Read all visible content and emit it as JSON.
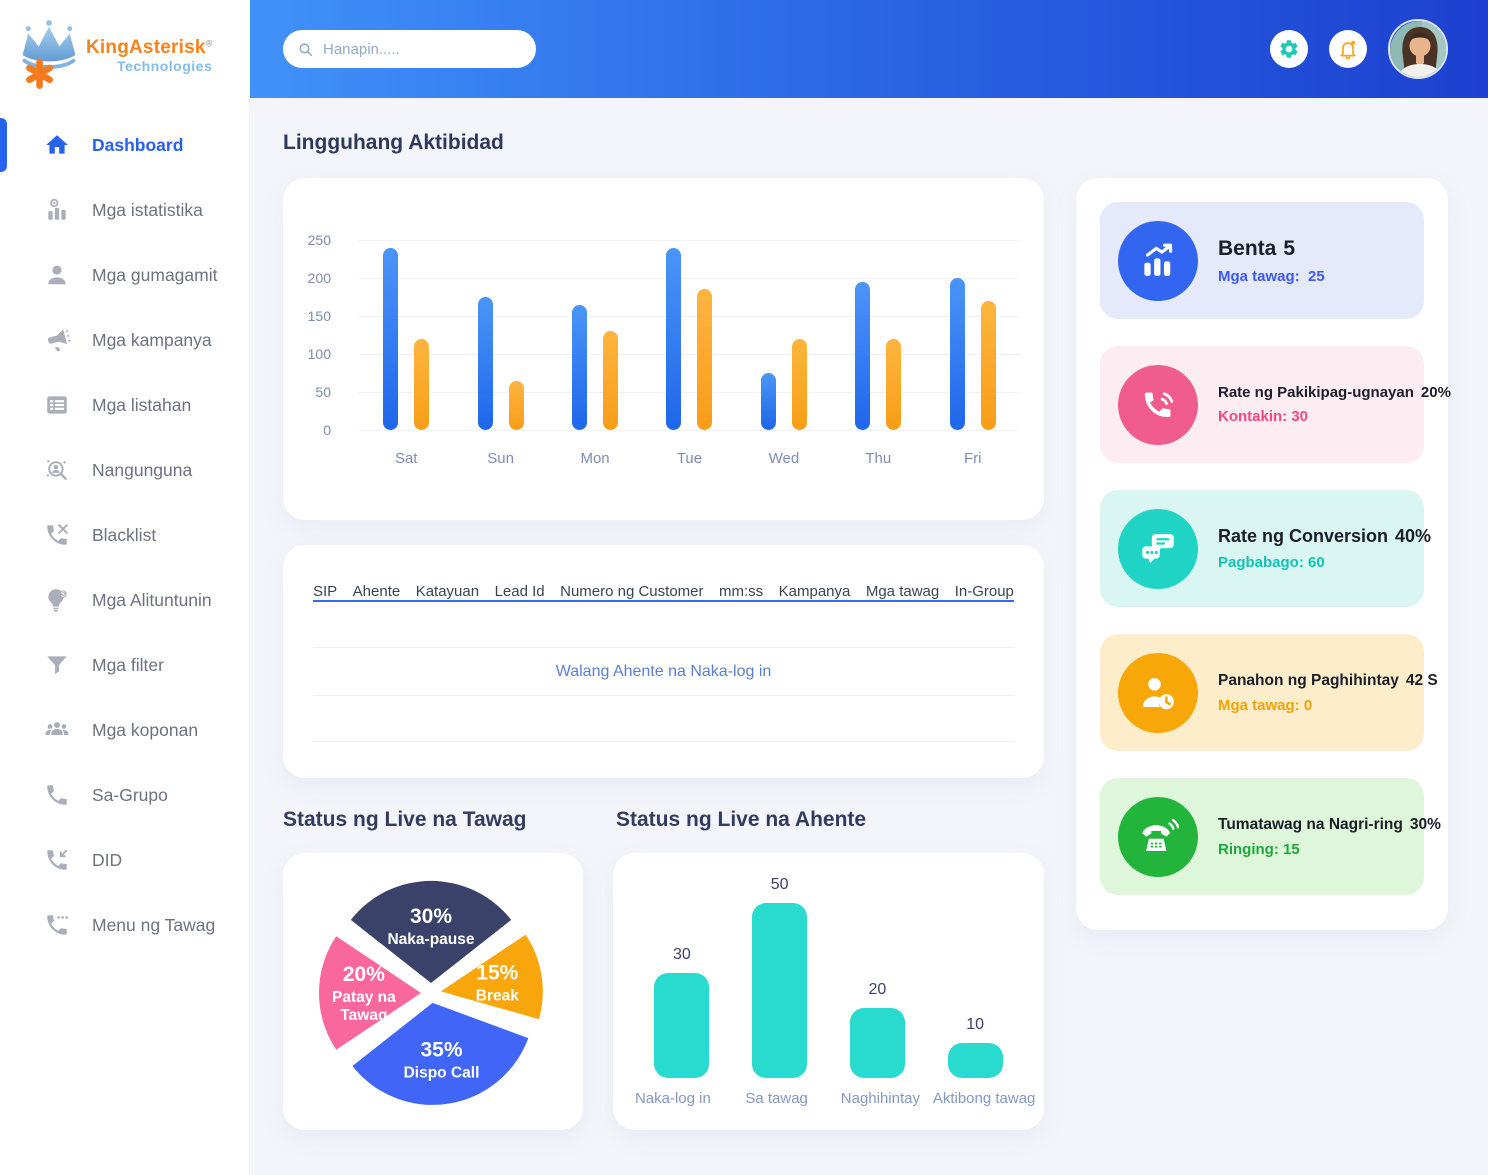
{
  "logo": {
    "name": "KingAsterisk",
    "reg": "®",
    "subtitle": "Technologies"
  },
  "header": {
    "search_placeholder": "Hanapin....."
  },
  "sidebar": {
    "items": [
      {
        "label": "Dashboard",
        "icon": "home-icon",
        "active": true
      },
      {
        "label": "Mga istatistika",
        "icon": "stats-icon"
      },
      {
        "label": "Mga gumagamit",
        "icon": "user-icon"
      },
      {
        "label": "Mga kampanya",
        "icon": "megaphone-icon"
      },
      {
        "label": "Mga listahan",
        "icon": "list-icon"
      },
      {
        "label": "Nangunguna",
        "icon": "leaderboard-icon"
      },
      {
        "label": "Blacklist",
        "icon": "phone-slash-icon"
      },
      {
        "label": "Mga Alituntunin",
        "icon": "bulb-icon"
      },
      {
        "label": "Mga filter",
        "icon": "filter-icon"
      },
      {
        "label": "Mga koponan",
        "icon": "team-icon"
      },
      {
        "label": "Sa-Grupo",
        "icon": "phone-icon"
      },
      {
        "label": "DID",
        "icon": "phone-incoming-icon"
      },
      {
        "label": "Menu ng Tawag",
        "icon": "phone-menu-icon"
      }
    ]
  },
  "main": {
    "weekly_title": "Lingguhang Aktibidad",
    "live_call_title": "Status ng Live na Tawag",
    "live_agent_title": "Status ng Live na Ahente",
    "table": {
      "headers": [
        "SIP",
        "Ahente",
        "Katayuan",
        "Lead Id",
        "Numero ng Customer",
        "mm:ss",
        "Kampanya",
        "Mga tawag",
        "In-Group"
      ],
      "empty_text": "Walang Ahente na Naka-log in"
    }
  },
  "stat_cards": [
    {
      "title": "Benta",
      "value": "5",
      "subtitle": "Mga tawag:  25",
      "icon": "sales-growth-icon",
      "accent": "#3366f0",
      "bg": "#e4e9fc"
    },
    {
      "title": "Rate ng Pakikipag-ugnayan",
      "value": "20%",
      "subtitle": "Kontakin: 30",
      "icon": "phone-volume-icon",
      "accent": "#f05c8e",
      "bg": "#fdedf2"
    },
    {
      "title": "Rate ng Conversion",
      "value": "40%",
      "subtitle": "Pagbabago: 60",
      "icon": "chat-bubbles-icon",
      "accent": "#1fd3c5",
      "bg": "#d9f6f3"
    },
    {
      "title": "Panahon ng Paghihintay",
      "value": "42 S",
      "subtitle": "Mga tawag: 0",
      "icon": "person-clock-icon",
      "accent": "#f7a707",
      "bg": "#fdedcb"
    },
    {
      "title": "Tumatawag na Nagri-ring",
      "value": "30%",
      "subtitle": "Ringing: 15",
      "icon": "telephone-ring-icon",
      "accent": "#23b53b",
      "bg": "#def7da"
    }
  ],
  "chart_data": [
    {
      "type": "bar",
      "title": "Lingguhang Aktibidad",
      "categories": [
        "Sat",
        "Sun",
        "Mon",
        "Tue",
        "Wed",
        "Thu",
        "Fri"
      ],
      "series": [
        {
          "name": "series-blue",
          "color": "#2e7ef3",
          "values": [
            240,
            175,
            165,
            240,
            75,
            195,
            200
          ]
        },
        {
          "name": "series-orange",
          "color": "#fba62c",
          "values": [
            120,
            65,
            130,
            185,
            120,
            120,
            170
          ]
        }
      ],
      "ylim": [
        0,
        250
      ],
      "yticks": [
        0,
        50,
        100,
        150,
        200,
        250
      ],
      "grid": true,
      "legend": "none"
    },
    {
      "type": "pie",
      "title": "Status ng Live na Tawag",
      "slices": [
        {
          "pct": 30,
          "label": "Naka-pause",
          "label_lines": [
            "Naka-pause"
          ],
          "color": "#3b4269"
        },
        {
          "pct": 15,
          "label": "Break",
          "label_lines": [
            "Break"
          ],
          "color": "#f8a60c"
        },
        {
          "pct": 35,
          "label": "Dispo Call",
          "label_lines": [
            "Dispo Call"
          ],
          "color": "#4165f6"
        },
        {
          "pct": 20,
          "label": "Patay na Tawag",
          "label_lines": [
            "Patay na",
            "Tawag"
          ],
          "color": "#f9679c"
        }
      ],
      "start_angle_deg": -54,
      "exploded": true,
      "legend": "none"
    },
    {
      "type": "bar",
      "title": "Status ng Live na Ahente",
      "categories": [
        "Naka-log in",
        "Sa tawag",
        "Naghihintay",
        "Aktibong tawag"
      ],
      "values": [
        30,
        50,
        20,
        10
      ],
      "color": "#29dbce",
      "ylim": [
        0,
        50
      ],
      "value_labels": true,
      "grid": false
    }
  ]
}
